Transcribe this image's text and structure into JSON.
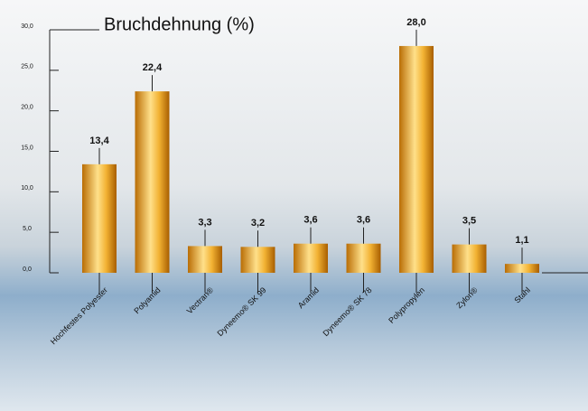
{
  "chart_data": {
    "type": "bar",
    "title": "Bruchdehnung (%)",
    "categories": [
      "Hochfestes Polyester",
      "Polyamid",
      "Vectran®",
      "Dyneemo® SK 99",
      "Aramid",
      "Dyneemo® SK 78",
      "Polypropylen",
      "Zylon®",
      "Stahl"
    ],
    "values": [
      13.4,
      22.4,
      3.3,
      3.2,
      3.6,
      3.6,
      28.0,
      3.5,
      1.1
    ],
    "value_labels": [
      "13,4",
      "22,4",
      "3,3",
      "3,2",
      "3,6",
      "3,6",
      "28,0",
      "3,5",
      "1,1"
    ],
    "color": "#f2b233",
    "ylim": [
      0,
      30
    ],
    "yticks": [
      {
        "value": 0,
        "label": "0,0"
      },
      {
        "value": 5,
        "label": "5,0"
      },
      {
        "value": 10,
        "label": "10,0"
      },
      {
        "value": 15,
        "label": "15,0"
      },
      {
        "value": 20,
        "label": "20,0"
      },
      {
        "value": 25,
        "label": "25,0"
      },
      {
        "value": 30,
        "label": "30,0"
      }
    ],
    "grid": false
  }
}
